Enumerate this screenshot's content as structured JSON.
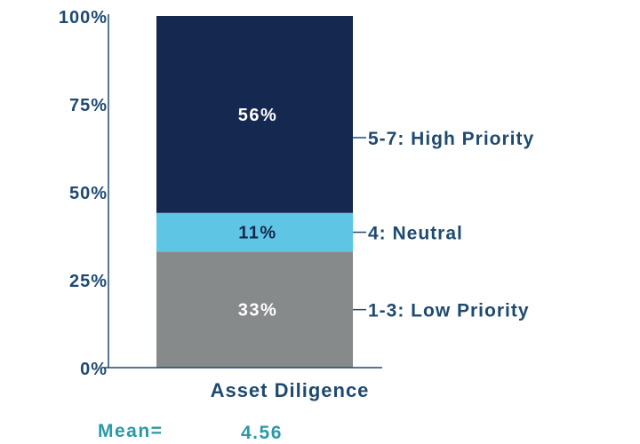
{
  "chart_data": {
    "type": "bar",
    "stacked": true,
    "categories": [
      "Asset Diligence"
    ],
    "series": [
      {
        "name": "1-3: Low Priority",
        "values": [
          33
        ],
        "label": "33%",
        "color": "#878a8b"
      },
      {
        "name": "4: Neutral",
        "values": [
          11
        ],
        "label": "11%",
        "color": "#5ec6e4"
      },
      {
        "name": "5-7: High Priority",
        "values": [
          56
        ],
        "label": "56%",
        "color": "#15284f"
      }
    ],
    "ylim": [
      0,
      100
    ],
    "yticks": [
      "0%",
      "25%",
      "50%",
      "75%",
      "100%"
    ],
    "ytick_values": [
      0,
      25,
      50,
      75,
      100
    ],
    "xlabel": "Asset Diligence",
    "legend_placement": "right",
    "grid": false,
    "annotation": {
      "label": "Mean=",
      "value": "4.56"
    }
  }
}
